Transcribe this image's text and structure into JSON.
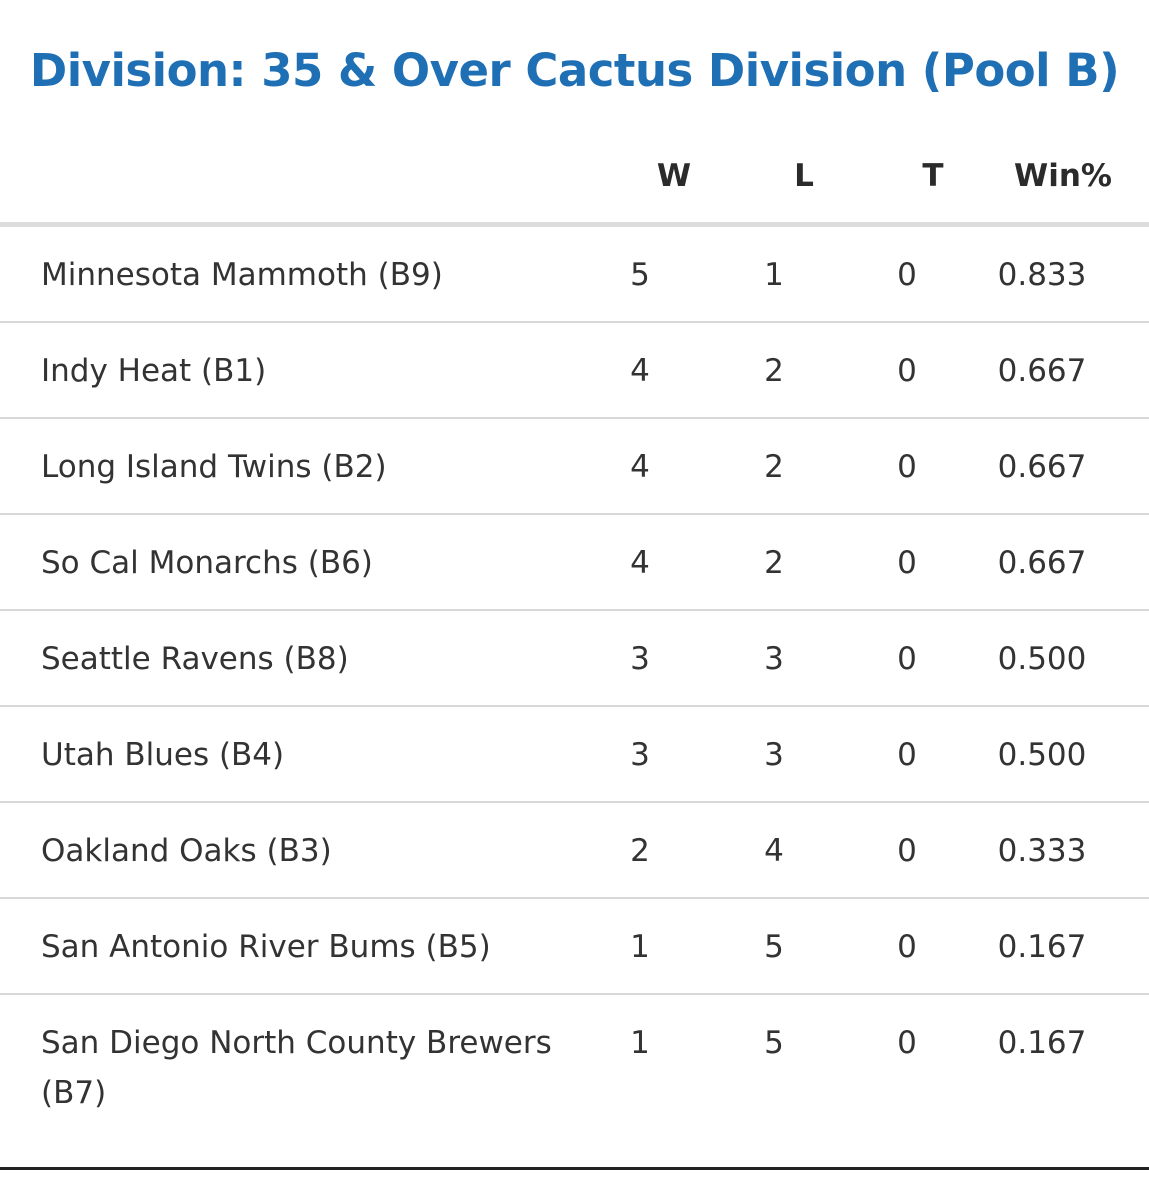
{
  "title": "Division: 35 & Over Cactus Division (Pool B)",
  "columns": {
    "team": "",
    "w": "W",
    "l": "L",
    "t": "T",
    "pct": "Win%"
  },
  "rows": [
    {
      "team": "Minnesota Mammoth (B9)",
      "w": "5",
      "l": "1",
      "t": "0",
      "pct": "0.833"
    },
    {
      "team": "Indy Heat (B1)",
      "w": "4",
      "l": "2",
      "t": "0",
      "pct": "0.667"
    },
    {
      "team": "Long Island Twins (B2)",
      "w": "4",
      "l": "2",
      "t": "0",
      "pct": "0.667"
    },
    {
      "team": "So Cal Monarchs (B6)",
      "w": "4",
      "l": "2",
      "t": "0",
      "pct": "0.667"
    },
    {
      "team": "Seattle Ravens (B8)",
      "w": "3",
      "l": "3",
      "t": "0",
      "pct": "0.500"
    },
    {
      "team": "Utah Blues (B4)",
      "w": "3",
      "l": "3",
      "t": "0",
      "pct": "0.500"
    },
    {
      "team": "Oakland Oaks (B3)",
      "w": "2",
      "l": "4",
      "t": "0",
      "pct": "0.333"
    },
    {
      "team": "San Antonio River Bums (B5)",
      "w": "1",
      "l": "5",
      "t": "0",
      "pct": "0.167"
    },
    {
      "team": "San Diego North County Brewers (B7)",
      "w": "1",
      "l": "5",
      "t": "0",
      "pct": "0.167"
    }
  ],
  "colors": {
    "title": "#1f6fb5",
    "text": "#333333",
    "divider": "#d8d8d8"
  }
}
